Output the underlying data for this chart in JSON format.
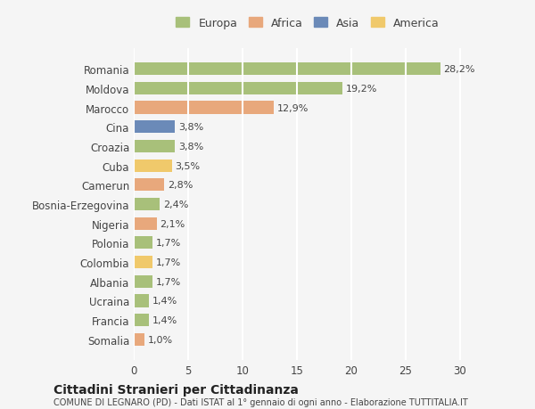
{
  "categories": [
    "Romania",
    "Moldova",
    "Marocco",
    "Cina",
    "Croazia",
    "Cuba",
    "Camerun",
    "Bosnia-Erzegovina",
    "Nigeria",
    "Polonia",
    "Colombia",
    "Albania",
    "Ucraina",
    "Francia",
    "Somalia"
  ],
  "values": [
    28.2,
    19.2,
    12.9,
    3.8,
    3.8,
    3.5,
    2.8,
    2.4,
    2.1,
    1.7,
    1.7,
    1.7,
    1.4,
    1.4,
    1.0
  ],
  "labels": [
    "28,2%",
    "19,2%",
    "12,9%",
    "3,8%",
    "3,8%",
    "3,5%",
    "2,8%",
    "2,4%",
    "2,1%",
    "1,7%",
    "1,7%",
    "1,7%",
    "1,4%",
    "1,4%",
    "1,0%"
  ],
  "colors": [
    "#a8c07a",
    "#a8c07a",
    "#e8a87c",
    "#6b8ab8",
    "#a8c07a",
    "#f0c96b",
    "#e8a87c",
    "#a8c07a",
    "#e8a87c",
    "#a8c07a",
    "#f0c96b",
    "#a8c07a",
    "#a8c07a",
    "#a8c07a",
    "#e8a87c"
  ],
  "legend": [
    {
      "label": "Europa",
      "color": "#a8c07a"
    },
    {
      "label": "Africa",
      "color": "#e8a87c"
    },
    {
      "label": "Asia",
      "color": "#6b8ab8"
    },
    {
      "label": "America",
      "color": "#f0c96b"
    }
  ],
  "xlim": [
    0,
    32
  ],
  "xticks": [
    0,
    5,
    10,
    15,
    20,
    25,
    30
  ],
  "title": "Cittadini Stranieri per Cittadinanza",
  "subtitle": "COMUNE DI LEGNARO (PD) - Dati ISTAT al 1° gennaio di ogni anno - Elaborazione TUTTITALIA.IT",
  "background_color": "#f5f5f5",
  "grid_color": "#ffffff",
  "bar_height": 0.65
}
